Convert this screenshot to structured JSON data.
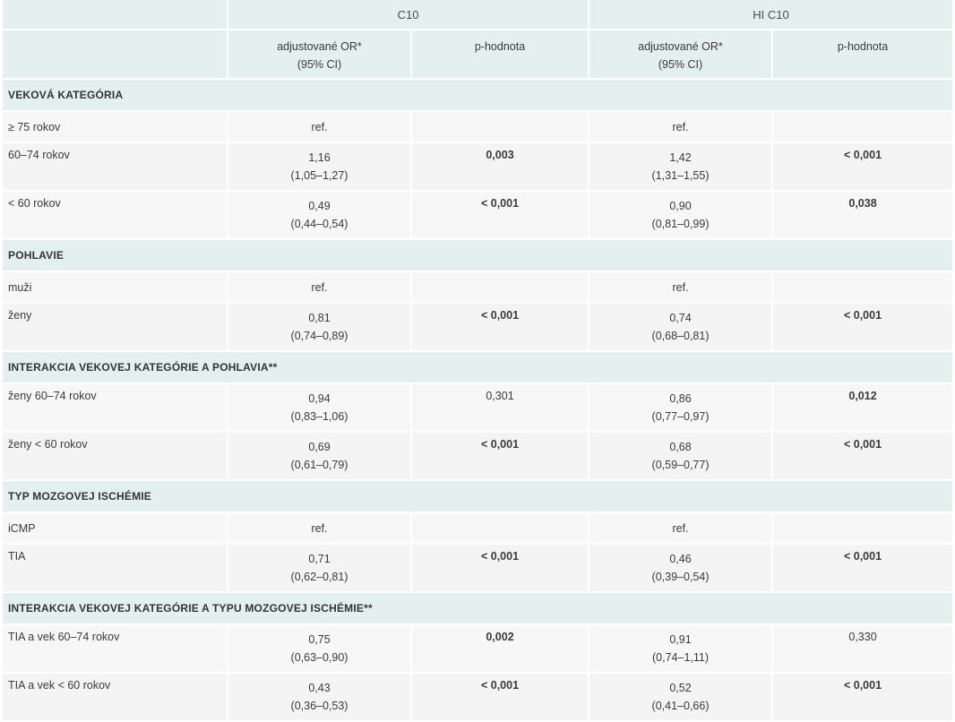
{
  "header": {
    "group1": "C10",
    "group2": "HI C10",
    "or_label": "adjustované OR*",
    "ci_label": "(95% CI)",
    "p_label": "p-hodnota"
  },
  "sections": [
    {
      "title": "VEKOVÁ KATEGÓRIA",
      "rows": [
        {
          "label": "≥ 75 rokov",
          "c10_or": "ref.",
          "c10_ci": "",
          "c10_p": "",
          "c10_p_bold": false,
          "hi_or": "ref.",
          "hi_ci": "",
          "hi_p": "",
          "hi_p_bold": false
        },
        {
          "label": "60–74 rokov",
          "c10_or": "1,16",
          "c10_ci": "(1,05–1,27)",
          "c10_p": "0,003",
          "c10_p_bold": true,
          "hi_or": "1,42",
          "hi_ci": "(1,31–1,55)",
          "hi_p": "< 0,001",
          "hi_p_bold": true
        },
        {
          "label": "< 60 rokov",
          "c10_or": "0,49",
          "c10_ci": "(0,44–0,54)",
          "c10_p": "< 0,001",
          "c10_p_bold": true,
          "hi_or": "0,90",
          "hi_ci": "(0,81–0,99)",
          "hi_p": "0,038",
          "hi_p_bold": true
        }
      ]
    },
    {
      "title": "POHLAVIE",
      "rows": [
        {
          "label": "muži",
          "c10_or": "ref.",
          "c10_ci": "",
          "c10_p": "",
          "c10_p_bold": false,
          "hi_or": "ref.",
          "hi_ci": "",
          "hi_p": "",
          "hi_p_bold": false
        },
        {
          "label": "ženy",
          "c10_or": "0,81",
          "c10_ci": "(0,74–0,89)",
          "c10_p": "< 0,001",
          "c10_p_bold": true,
          "hi_or": "0,74",
          "hi_ci": "(0,68–0,81)",
          "hi_p": "< 0,001",
          "hi_p_bold": true
        }
      ]
    },
    {
      "title": "INTERAKCIA VEKOVEJ KATEGÓRIE A POHLAVIA**",
      "rows": [
        {
          "label": "ženy 60–74 rokov",
          "c10_or": "0,94",
          "c10_ci": "(0,83–1,06)",
          "c10_p": "0,301",
          "c10_p_bold": false,
          "hi_or": "0,86",
          "hi_ci": "(0,77–0,97)",
          "hi_p": "0,012",
          "hi_p_bold": true
        },
        {
          "label": "ženy < 60 rokov",
          "c10_or": "0,69",
          "c10_ci": "(0,61–0,79)",
          "c10_p": "< 0,001",
          "c10_p_bold": true,
          "hi_or": "0,68",
          "hi_ci": "(0,59–0,77)",
          "hi_p": "< 0,001",
          "hi_p_bold": true
        }
      ]
    },
    {
      "title": "TYP MOZGOVEJ ISCHÉMIE",
      "rows": [
        {
          "label": "iCMP",
          "c10_or": "ref.",
          "c10_ci": "",
          "c10_p": "",
          "c10_p_bold": false,
          "hi_or": "ref.",
          "hi_ci": "",
          "hi_p": "",
          "hi_p_bold": false
        },
        {
          "label": "TIA",
          "c10_or": "0,71",
          "c10_ci": "(0,62–0,81)",
          "c10_p": "< 0,001",
          "c10_p_bold": true,
          "hi_or": "0,46",
          "hi_ci": "(0,39–0,54)",
          "hi_p": "< 0,001",
          "hi_p_bold": true
        }
      ]
    },
    {
      "title": "INTERAKCIA VEKOVEJ KATEGÓRIE A TYPU MOZGOVEJ ISCHÉMIE**",
      "rows": [
        {
          "label": "TIA a vek 60–74 rokov",
          "c10_or": "0,75",
          "c10_ci": "(0,63–0,90)",
          "c10_p": "0,002",
          "c10_p_bold": true,
          "hi_or": "0,91",
          "hi_ci": "(0,74–1,11)",
          "hi_p": "0,330",
          "hi_p_bold": false
        },
        {
          "label": "TIA a vek < 60 rokov",
          "c10_or": "0,43",
          "c10_ci": "(0,36–0,53)",
          "c10_p": "< 0,001",
          "c10_p_bold": true,
          "hi_or": "0,52",
          "hi_ci": "(0,41–0,66)",
          "hi_p": "< 0,001",
          "hi_p_bold": true
        }
      ]
    }
  ]
}
